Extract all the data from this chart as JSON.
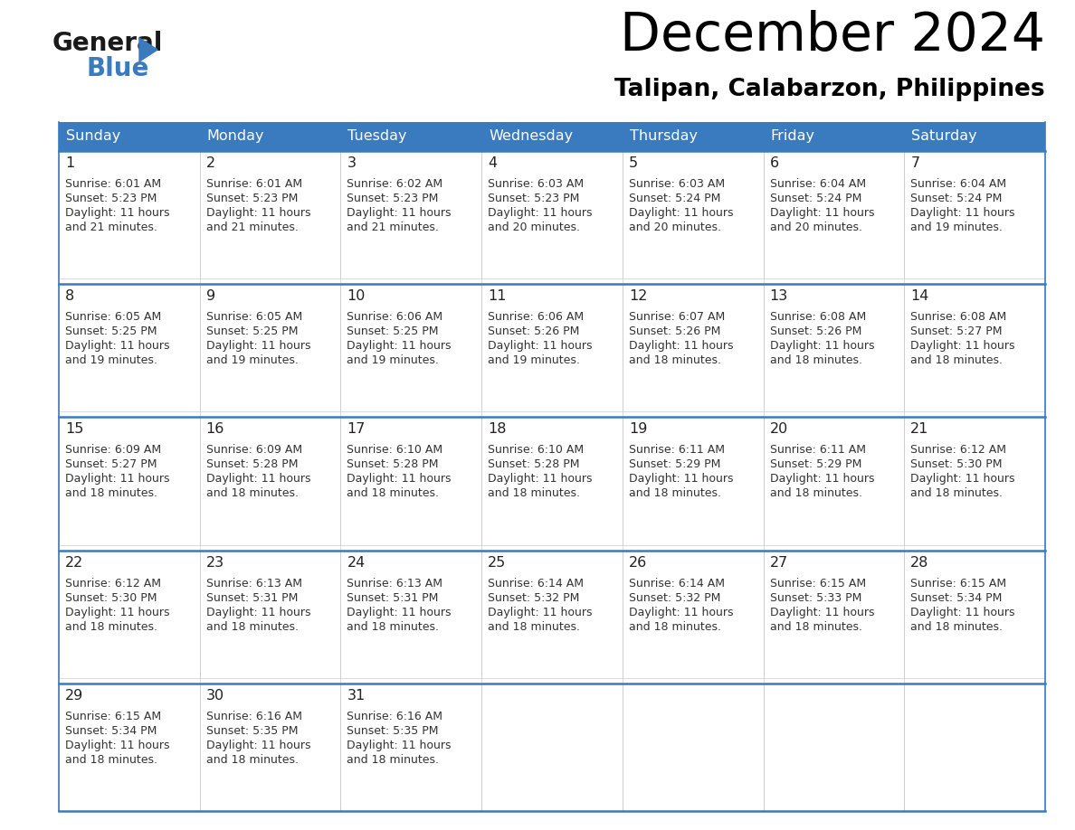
{
  "title": "December 2024",
  "subtitle": "Talipan, Calabarzon, Philippines",
  "header_color": "#3a7abf",
  "header_text_color": "#ffffff",
  "border_color": "#3a7abf",
  "cell_border_color": "#aaaaaa",
  "text_color": "#333333",
  "days_of_week": [
    "Sunday",
    "Monday",
    "Tuesday",
    "Wednesday",
    "Thursday",
    "Friday",
    "Saturday"
  ],
  "weeks": [
    [
      {
        "day": 1,
        "sunrise": "6:01 AM",
        "sunset": "5:23 PM",
        "daylight": "11 hours and 21 minutes."
      },
      {
        "day": 2,
        "sunrise": "6:01 AM",
        "sunset": "5:23 PM",
        "daylight": "11 hours and 21 minutes."
      },
      {
        "day": 3,
        "sunrise": "6:02 AM",
        "sunset": "5:23 PM",
        "daylight": "11 hours and 21 minutes."
      },
      {
        "day": 4,
        "sunrise": "6:03 AM",
        "sunset": "5:23 PM",
        "daylight": "11 hours and 20 minutes."
      },
      {
        "day": 5,
        "sunrise": "6:03 AM",
        "sunset": "5:24 PM",
        "daylight": "11 hours and 20 minutes."
      },
      {
        "day": 6,
        "sunrise": "6:04 AM",
        "sunset": "5:24 PM",
        "daylight": "11 hours and 20 minutes."
      },
      {
        "day": 7,
        "sunrise": "6:04 AM",
        "sunset": "5:24 PM",
        "daylight": "11 hours and 19 minutes."
      }
    ],
    [
      {
        "day": 8,
        "sunrise": "6:05 AM",
        "sunset": "5:25 PM",
        "daylight": "11 hours and 19 minutes."
      },
      {
        "day": 9,
        "sunrise": "6:05 AM",
        "sunset": "5:25 PM",
        "daylight": "11 hours and 19 minutes."
      },
      {
        "day": 10,
        "sunrise": "6:06 AM",
        "sunset": "5:25 PM",
        "daylight": "11 hours and 19 minutes."
      },
      {
        "day": 11,
        "sunrise": "6:06 AM",
        "sunset": "5:26 PM",
        "daylight": "11 hours and 19 minutes."
      },
      {
        "day": 12,
        "sunrise": "6:07 AM",
        "sunset": "5:26 PM",
        "daylight": "11 hours and 18 minutes."
      },
      {
        "day": 13,
        "sunrise": "6:08 AM",
        "sunset": "5:26 PM",
        "daylight": "11 hours and 18 minutes."
      },
      {
        "day": 14,
        "sunrise": "6:08 AM",
        "sunset": "5:27 PM",
        "daylight": "11 hours and 18 minutes."
      }
    ],
    [
      {
        "day": 15,
        "sunrise": "6:09 AM",
        "sunset": "5:27 PM",
        "daylight": "11 hours and 18 minutes."
      },
      {
        "day": 16,
        "sunrise": "6:09 AM",
        "sunset": "5:28 PM",
        "daylight": "11 hours and 18 minutes."
      },
      {
        "day": 17,
        "sunrise": "6:10 AM",
        "sunset": "5:28 PM",
        "daylight": "11 hours and 18 minutes."
      },
      {
        "day": 18,
        "sunrise": "6:10 AM",
        "sunset": "5:28 PM",
        "daylight": "11 hours and 18 minutes."
      },
      {
        "day": 19,
        "sunrise": "6:11 AM",
        "sunset": "5:29 PM",
        "daylight": "11 hours and 18 minutes."
      },
      {
        "day": 20,
        "sunrise": "6:11 AM",
        "sunset": "5:29 PM",
        "daylight": "11 hours and 18 minutes."
      },
      {
        "day": 21,
        "sunrise": "6:12 AM",
        "sunset": "5:30 PM",
        "daylight": "11 hours and 18 minutes."
      }
    ],
    [
      {
        "day": 22,
        "sunrise": "6:12 AM",
        "sunset": "5:30 PM",
        "daylight": "11 hours and 18 minutes."
      },
      {
        "day": 23,
        "sunrise": "6:13 AM",
        "sunset": "5:31 PM",
        "daylight": "11 hours and 18 minutes."
      },
      {
        "day": 24,
        "sunrise": "6:13 AM",
        "sunset": "5:31 PM",
        "daylight": "11 hours and 18 minutes."
      },
      {
        "day": 25,
        "sunrise": "6:14 AM",
        "sunset": "5:32 PM",
        "daylight": "11 hours and 18 minutes."
      },
      {
        "day": 26,
        "sunrise": "6:14 AM",
        "sunset": "5:32 PM",
        "daylight": "11 hours and 18 minutes."
      },
      {
        "day": 27,
        "sunrise": "6:15 AM",
        "sunset": "5:33 PM",
        "daylight": "11 hours and 18 minutes."
      },
      {
        "day": 28,
        "sunrise": "6:15 AM",
        "sunset": "5:34 PM",
        "daylight": "11 hours and 18 minutes."
      }
    ],
    [
      {
        "day": 29,
        "sunrise": "6:15 AM",
        "sunset": "5:34 PM",
        "daylight": "11 hours and 18 minutes."
      },
      {
        "day": 30,
        "sunrise": "6:16 AM",
        "sunset": "5:35 PM",
        "daylight": "11 hours and 18 minutes."
      },
      {
        "day": 31,
        "sunrise": "6:16 AM",
        "sunset": "5:35 PM",
        "daylight": "11 hours and 18 minutes."
      },
      null,
      null,
      null,
      null
    ]
  ]
}
